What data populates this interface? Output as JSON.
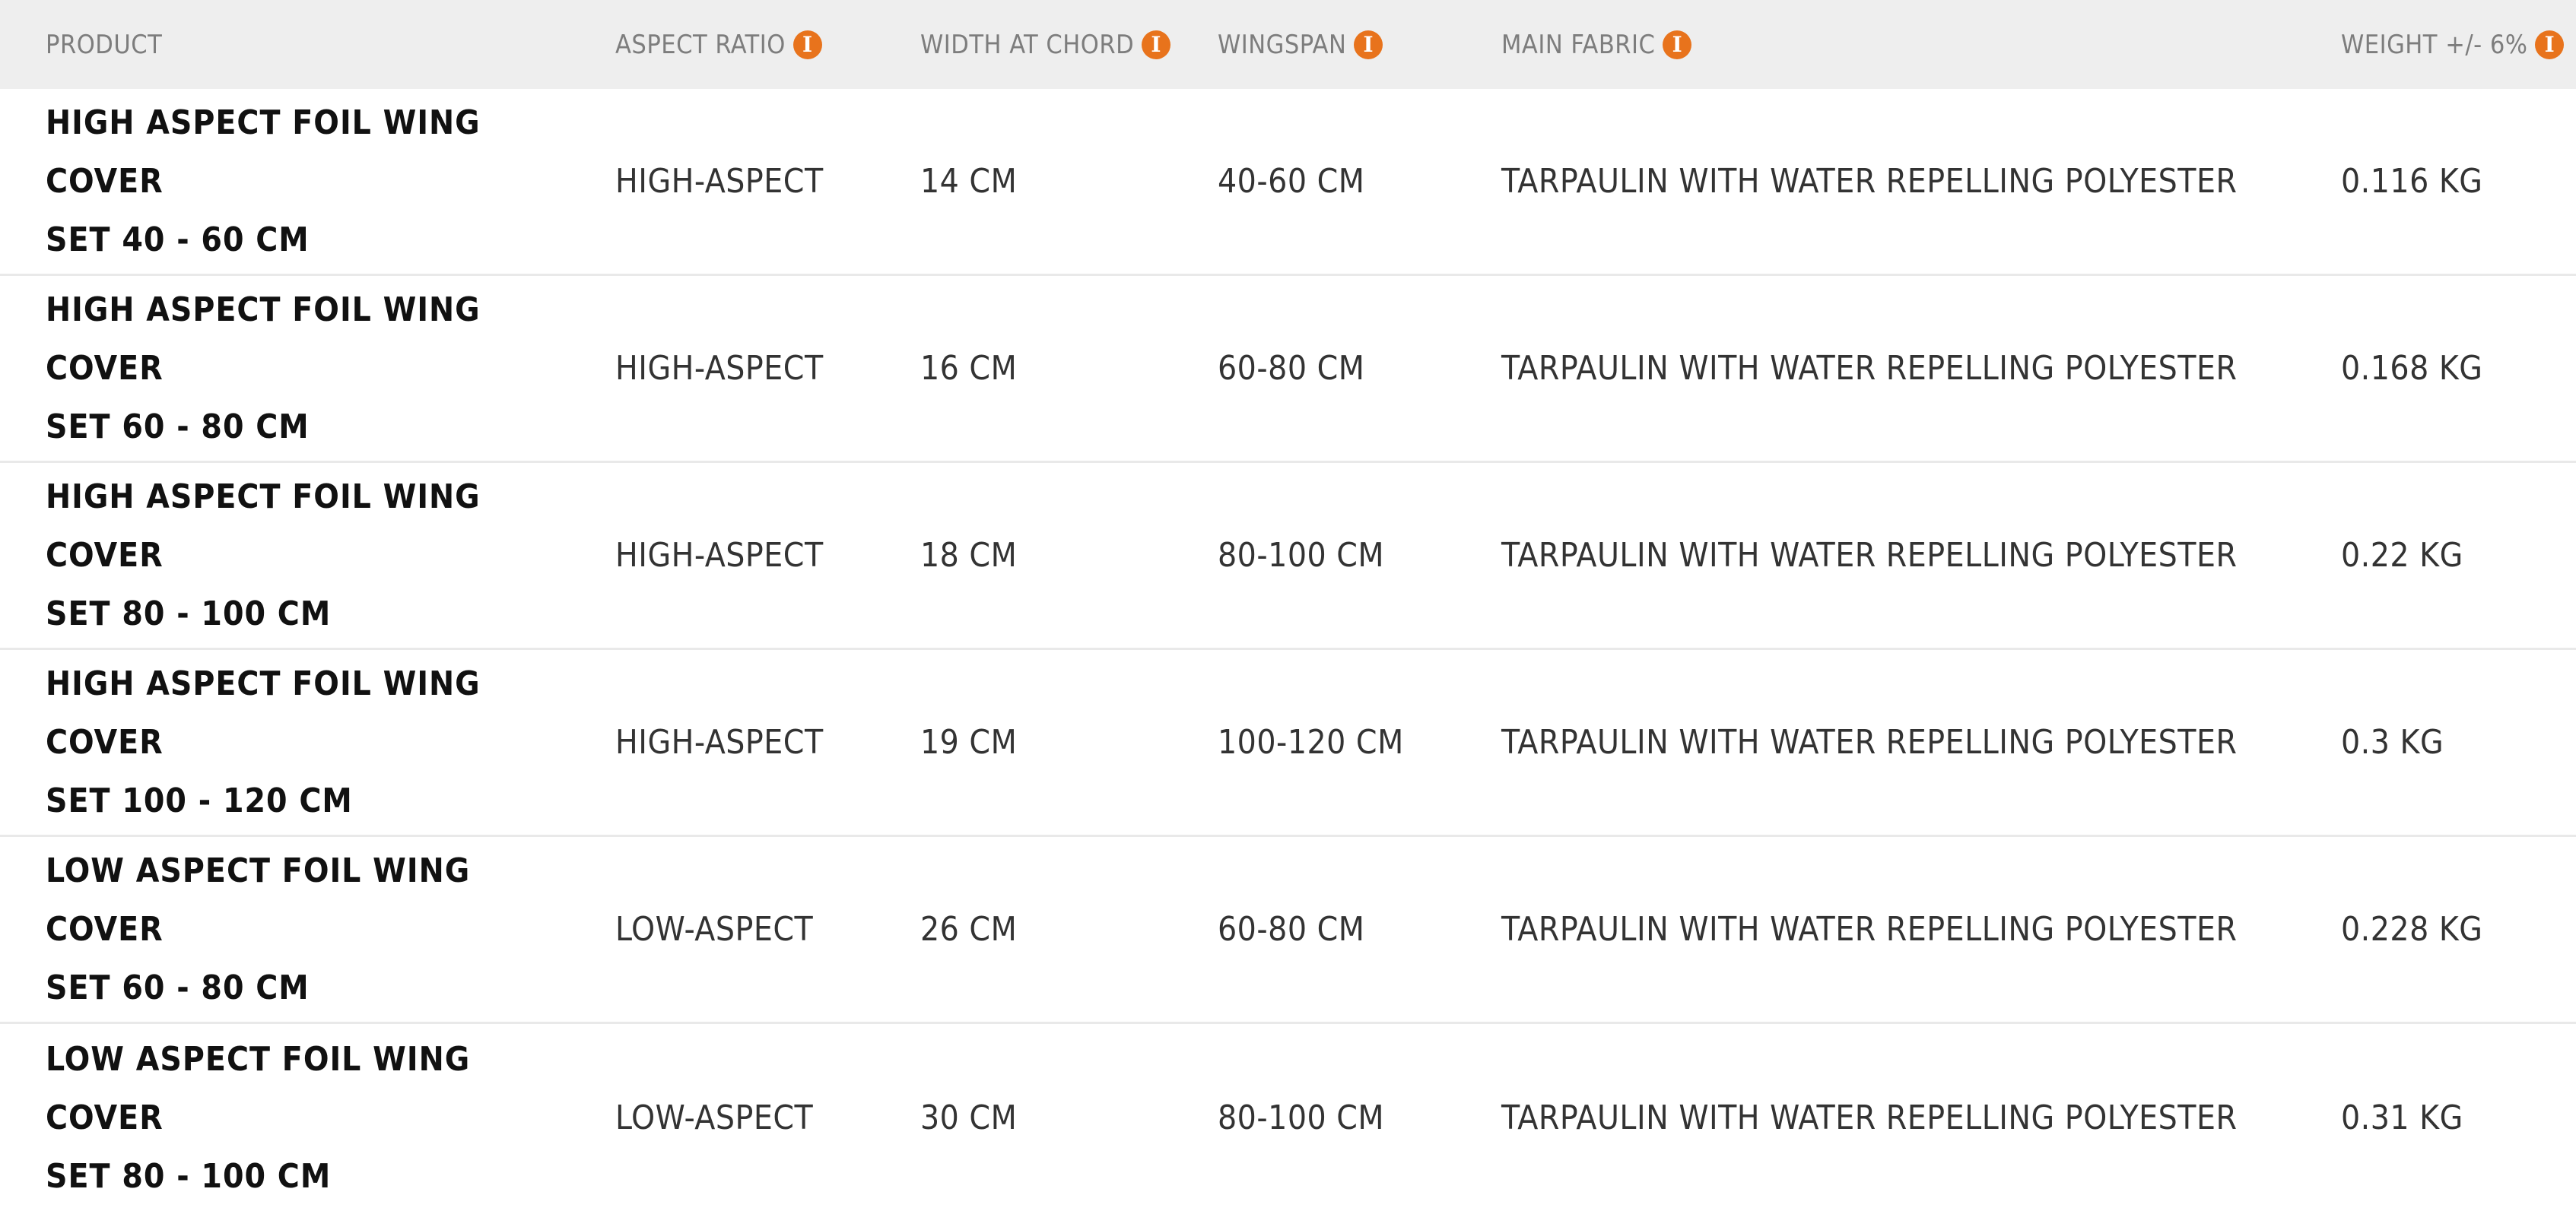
{
  "table": {
    "headers": {
      "product": "PRODUCT",
      "aspect_ratio": "ASPECT RATIO",
      "width_at_chord": "WIDTH AT CHORD",
      "wingspan": "WINGSPAN",
      "main_fabric": "MAIN FABRIC",
      "weight": "WEIGHT +/- 6%"
    },
    "info_icon_glyph": "i",
    "accent_color": "#e8731c",
    "rows": [
      {
        "product_line1": "HIGH ASPECT FOIL WING COVER",
        "product_line2": "SET 40 - 60 CM",
        "aspect_ratio": "HIGH-ASPECT",
        "width_at_chord": "14 CM",
        "wingspan": "40-60 CM",
        "main_fabric": "TARPAULIN WITH WATER REPELLING POLYESTER",
        "weight": "0.116 KG"
      },
      {
        "product_line1": "HIGH ASPECT FOIL WING COVER",
        "product_line2": "SET 60 - 80 CM",
        "aspect_ratio": "HIGH-ASPECT",
        "width_at_chord": "16 CM",
        "wingspan": "60-80 CM",
        "main_fabric": "TARPAULIN WITH WATER REPELLING POLYESTER",
        "weight": "0.168 KG"
      },
      {
        "product_line1": "HIGH ASPECT FOIL WING COVER",
        "product_line2": "SET 80 - 100 CM",
        "aspect_ratio": "HIGH-ASPECT",
        "width_at_chord": "18 CM",
        "wingspan": "80-100 CM",
        "main_fabric": "TARPAULIN WITH WATER REPELLING POLYESTER",
        "weight": "0.22 KG"
      },
      {
        "product_line1": "HIGH ASPECT FOIL WING COVER",
        "product_line2": "SET 100 - 120 CM",
        "aspect_ratio": "HIGH-ASPECT",
        "width_at_chord": "19 CM",
        "wingspan": "100-120 CM",
        "main_fabric": "TARPAULIN WITH WATER REPELLING POLYESTER",
        "weight": "0.3 KG"
      },
      {
        "product_line1": "LOW ASPECT FOIL WING COVER",
        "product_line2": "SET 60 - 80 CM",
        "aspect_ratio": "LOW-ASPECT",
        "width_at_chord": "26 CM",
        "wingspan": "60-80 CM",
        "main_fabric": "TARPAULIN WITH WATER REPELLING POLYESTER",
        "weight": "0.228 KG"
      },
      {
        "product_line1": "LOW ASPECT FOIL WING COVER",
        "product_line2": "SET 80 - 100 CM",
        "aspect_ratio": "LOW-ASPECT",
        "width_at_chord": "30 CM",
        "wingspan": "80-100 CM",
        "main_fabric": "TARPAULIN WITH WATER REPELLING POLYESTER",
        "weight": "0.31 KG"
      }
    ]
  }
}
